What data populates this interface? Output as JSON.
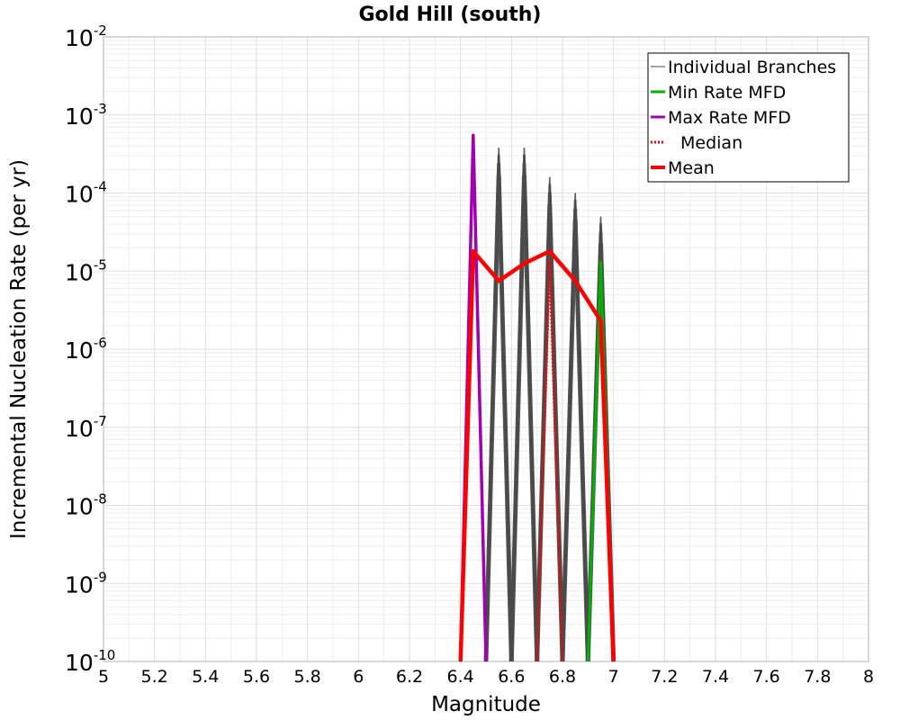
{
  "chart_data": {
    "type": "line",
    "title": "Gold Hill (south)",
    "xlabel": "Magnitude",
    "ylabel": "Incremental Nucleation Rate (per yr)",
    "xlim": [
      5,
      8
    ],
    "ylim": [
      1e-10,
      0.01
    ],
    "yscale": "log",
    "grid": true,
    "legend_position": "top-right",
    "x_ticks": [
      "5",
      "5.2",
      "5.4",
      "5.6",
      "5.8",
      "6",
      "6.2",
      "6.4",
      "6.6",
      "6.8",
      "7",
      "7.2",
      "7.4",
      "7.6",
      "7.8",
      "8"
    ],
    "y_ticks": [
      {
        "base": "10",
        "exp": "-2"
      },
      {
        "base": "10",
        "exp": "-3"
      },
      {
        "base": "10",
        "exp": "-4"
      },
      {
        "base": "10",
        "exp": "-5"
      },
      {
        "base": "10",
        "exp": "-6"
      },
      {
        "base": "10",
        "exp": "-7"
      },
      {
        "base": "10",
        "exp": "-8"
      },
      {
        "base": "10",
        "exp": "-9"
      },
      {
        "base": "10",
        "exp": "-10"
      }
    ],
    "series": [
      {
        "name": "Individual Branches",
        "color": "#4a4a4a",
        "style": "thin",
        "peaks": [
          {
            "x": 6.55,
            "y_top": 0.00038
          },
          {
            "x": 6.65,
            "y_top": 0.00038
          },
          {
            "x": 6.75,
            "y_top": 0.00016
          },
          {
            "x": 6.85,
            "y_top": 0.0001
          },
          {
            "x": 6.95,
            "y_top": 5e-05
          }
        ]
      },
      {
        "name": "Min Rate MFD",
        "color": "#00b000",
        "x": [
          6.9,
          6.95,
          7.0
        ],
        "y": [
          1e-10,
          1.3e-05,
          1e-10
        ]
      },
      {
        "name": "Max Rate MFD",
        "color": "#a000b0",
        "x": [
          6.4,
          6.45,
          6.5
        ],
        "y": [
          1e-10,
          0.00055,
          1e-10
        ]
      },
      {
        "name": "Median",
        "color": "#ff0000",
        "style": "dotted",
        "x": [
          6.7,
          6.75,
          6.8
        ],
        "y": [
          1e-10,
          1.4e-05,
          1e-10
        ]
      },
      {
        "name": "Mean",
        "color": "#ff0000",
        "x": [
          6.4,
          6.45,
          6.55,
          6.65,
          6.75,
          6.85,
          6.95,
          7.0
        ],
        "y": [
          1e-10,
          1.8e-05,
          7.5e-06,
          1.25e-05,
          1.8e-05,
          7.5e-06,
          2.3e-06,
          1e-10
        ]
      }
    ]
  }
}
